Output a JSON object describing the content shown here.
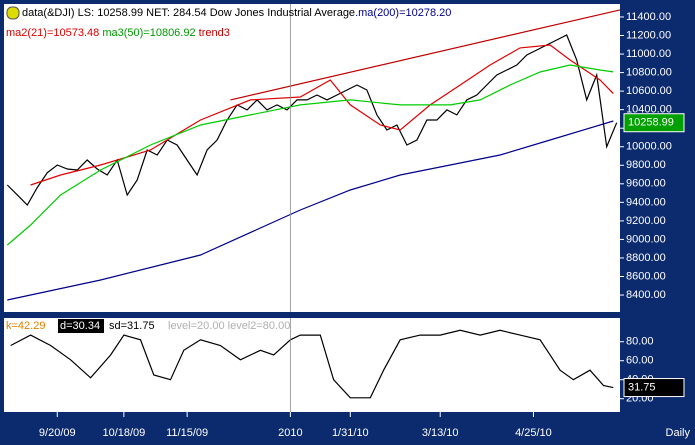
{
  "chart_data": [
    {
      "type": "line",
      "header": "data(&DJI) LS: 10258.99  NET: 284.54  Dow Jones Industrial Average",
      "xlim": [
        0,
        185
      ],
      "ylim": [
        8217,
        11540
      ],
      "yticks": [
        {
          "value": 8400,
          "label": "8400.00"
        },
        {
          "value": 8600,
          "label": "8600.00"
        },
        {
          "value": 8800,
          "label": "8800.00"
        },
        {
          "value": 9000,
          "label": "9000.00"
        },
        {
          "value": 9200,
          "label": "9200.00"
        },
        {
          "value": 9400,
          "label": "9400.00"
        },
        {
          "value": 9600,
          "label": "9600.00"
        },
        {
          "value": 9800,
          "label": "9800.00"
        },
        {
          "value": 10000,
          "label": "10000.00"
        },
        {
          "value": 10200,
          "label": "10200.00"
        },
        {
          "value": 10400,
          "label": "10400.00"
        },
        {
          "value": 10600,
          "label": "10600.00"
        },
        {
          "value": 10800,
          "label": "10800.00"
        },
        {
          "value": 11000,
          "label": "11000.00"
        },
        {
          "value": 11200,
          "label": "11200.00"
        },
        {
          "value": 11400,
          "label": "11400.00"
        }
      ],
      "series": [
        {
          "name": "data(&DJI)",
          "color": "#000000",
          "last_label": "10258.99",
          "x": [
            1,
            4,
            7,
            10,
            13,
            16,
            19,
            22,
            25,
            28,
            31,
            34,
            37,
            40,
            43,
            46,
            49,
            52,
            55,
            58,
            61,
            64,
            67,
            70,
            73,
            76,
            79,
            82,
            85,
            88,
            91,
            94,
            97,
            100,
            103,
            106,
            109,
            112,
            115,
            118,
            121,
            124,
            127,
            130,
            133,
            136,
            139,
            142,
            145,
            148,
            151,
            154,
            157,
            160,
            163,
            166,
            169,
            172,
            175,
            178,
            181,
            184
          ],
          "values": [
            9587,
            9480,
            9371,
            9560,
            9720,
            9803,
            9760,
            9749,
            9857,
            9760,
            9695,
            9857,
            9479,
            9641,
            9965,
            9911,
            10073,
            10019,
            9857,
            9695,
            9965,
            10073,
            10289,
            10451,
            10397,
            10505,
            10397,
            10451,
            10397,
            10505,
            10505,
            10558,
            10505,
            10558,
            10612,
            10666,
            10612,
            10343,
            10181,
            10235,
            10019,
            10073,
            10289,
            10289,
            10397,
            10343,
            10505,
            10558,
            10666,
            10774,
            10828,
            10882,
            10990,
            11044,
            11098,
            11152,
            11206,
            10936,
            10505,
            10774,
            10000,
            10258.99
          ]
        },
        {
          "name": ".ma(200)=10278.20",
          "color": "#00008b",
          "x": [
            1,
            29,
            59,
            89,
            104,
            119,
            134,
            149,
            164,
            183
          ],
          "values": [
            8346,
            8562,
            8832,
            9318,
            9533,
            9695,
            9803,
            9911,
            10073,
            10278.2
          ]
        },
        {
          "name": "ma2(21)=10573.48",
          "color": "#e00000",
          "x": [
            8,
            17,
            29,
            44,
            59,
            74,
            89,
            98,
            104,
            113,
            119,
            128,
            137,
            146,
            155,
            164,
            170,
            179,
            183
          ],
          "values": [
            9587,
            9695,
            9803,
            9965,
            10289,
            10505,
            10537,
            10720,
            10451,
            10235,
            10181,
            10451,
            10666,
            10882,
            11066,
            11098,
            10936,
            10720,
            10573.48
          ]
        },
        {
          "name": "ma3(50)=10806.92",
          "color": "#00cc00",
          "x": [
            1,
            8,
            17,
            29,
            44,
            59,
            74,
            89,
            104,
            119,
            134,
            143,
            152,
            161,
            170,
            179,
            183
          ],
          "values": [
            8940,
            9156,
            9479,
            9749,
            10019,
            10235,
            10343,
            10451,
            10505,
            10451,
            10451,
            10505,
            10666,
            10806,
            10882,
            10828,
            10806.92
          ]
        },
        {
          "name": "trend3",
          "color": "#c00000",
          "x": [
            68,
            185
          ],
          "values": [
            10505,
            11476
          ]
        }
      ]
    },
    {
      "type": "line",
      "header": "k=42.29",
      "d_label": "d=30.34",
      "sd_label": "sd=31.75",
      "levels_label": "level=20.00 level2=80.00",
      "period": "Daily",
      "xlim": [
        0,
        185
      ],
      "xticks": [
        {
          "value": 16,
          "label": "9/20/09"
        },
        {
          "value": 36,
          "label": "10/18/09"
        },
        {
          "value": 55,
          "label": "11/15/09"
        },
        {
          "value": 86,
          "label": "2010"
        },
        {
          "value": 104,
          "label": "1/31/10"
        },
        {
          "value": 131,
          "label": "3/13/10"
        },
        {
          "value": 159,
          "label": "4/25/10"
        }
      ],
      "ylim": [
        6,
        105
      ],
      "yticks": [
        {
          "value": 20,
          "label": "20.00"
        },
        {
          "value": 40,
          "label": "40.00"
        },
        {
          "value": 60,
          "label": "60.00"
        },
        {
          "value": 80,
          "label": "80.00"
        }
      ],
      "series": [
        {
          "name": "sd",
          "color": "#000000",
          "last_label": "31.75",
          "x": [
            2,
            8,
            14,
            20,
            26,
            32,
            36,
            41,
            45,
            50,
            54,
            59,
            65,
            71,
            77,
            81,
            86,
            89,
            95,
            99,
            104,
            110,
            114,
            119,
            125,
            131,
            137,
            143,
            149,
            155,
            161,
            167,
            171,
            176,
            180,
            183
          ],
          "values": [
            76,
            87,
            76,
            61,
            42,
            66,
            87,
            82,
            45,
            40,
            71,
            82,
            76,
            61,
            71,
            66,
            82,
            87,
            87,
            40,
            21,
            21,
            50,
            82,
            87,
            87,
            92,
            87,
            92,
            87,
            82,
            50,
            40,
            50,
            34,
            31.75
          ]
        }
      ]
    }
  ]
}
